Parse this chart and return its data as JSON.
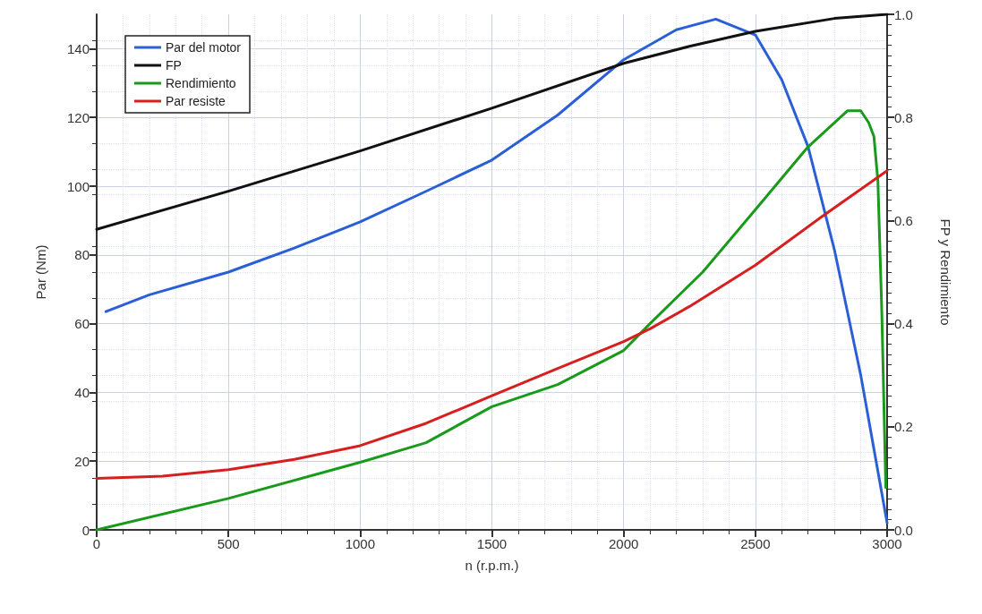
{
  "chart_data": {
    "type": "line",
    "xlabel": "n (r.p.m.)",
    "ylabel": "Par (Nm)",
    "y2label": "FP y Rendimiento",
    "xlim": [
      0,
      3000
    ],
    "xticks": [
      0,
      500,
      1000,
      1500,
      2000,
      2500,
      3000
    ],
    "ylim": [
      0,
      150
    ],
    "yticks": [
      0,
      20,
      40,
      60,
      80,
      100,
      120,
      140
    ],
    "y2lim": [
      0,
      1
    ],
    "y2ticks": [
      {
        "value": 0,
        "label": "0.0"
      },
      {
        "value": 0.2,
        "label": "0.2"
      },
      {
        "value": 0.4,
        "label": "0.4"
      },
      {
        "value": 0.6,
        "label": "0.6"
      },
      {
        "value": 0.8,
        "label": "0.8"
      },
      {
        "value": 1,
        "label": "1.0"
      }
    ],
    "grid": true,
    "legend": "top left",
    "marker": "none",
    "line_style": "solid",
    "series": [
      {
        "name": "Par del motor",
        "color": "#2a5fd6",
        "x": [
          35,
          200,
          500,
          750,
          1000,
          1250,
          1500,
          1750,
          2000,
          2200,
          2350,
          2500,
          2600,
          2700,
          2800,
          2900,
          3000
        ],
        "values": [
          63.5,
          68.4,
          75,
          82,
          89.6,
          98.5,
          107.6,
          120.7,
          136.8,
          145.5,
          148.6,
          144,
          131,
          111.5,
          81.5,
          45,
          2
        ]
      },
      {
        "name": "FP",
        "color": "#111111",
        "axis": "y2",
        "x": [
          0,
          500,
          1000,
          1500,
          2000,
          2250,
          2500,
          2800,
          3000
        ],
        "values": [
          0.583,
          0.657,
          0.735,
          0.818,
          0.905,
          0.938,
          0.967,
          0.992,
          1.0
        ]
      },
      {
        "name": "Rendimiento",
        "color": "#1a9a1a",
        "axis": "y2",
        "x": [
          0,
          500,
          1000,
          1250,
          1500,
          1750,
          2000,
          2100,
          2200,
          2300,
          2500,
          2700,
          2850,
          2900,
          2930,
          2950,
          2965,
          2980,
          2995
        ],
        "values": [
          0,
          0.061,
          0.131,
          0.169,
          0.239,
          0.282,
          0.348,
          0.4,
          0.45,
          0.5,
          0.621,
          0.743,
          0.813,
          0.813,
          0.79,
          0.763,
          0.677,
          0.42,
          0.082
        ]
      },
      {
        "name": "Par resiste",
        "color": "#d62020",
        "x": [
          0,
          250,
          500,
          750,
          1000,
          1250,
          1500,
          1750,
          2000,
          2100,
          2250,
          2500,
          2750,
          3000
        ],
        "values": [
          15,
          15.6,
          17.5,
          20.5,
          24.5,
          31,
          39,
          47,
          54.8,
          58.5,
          65,
          77,
          91,
          104.5
        ]
      }
    ]
  }
}
